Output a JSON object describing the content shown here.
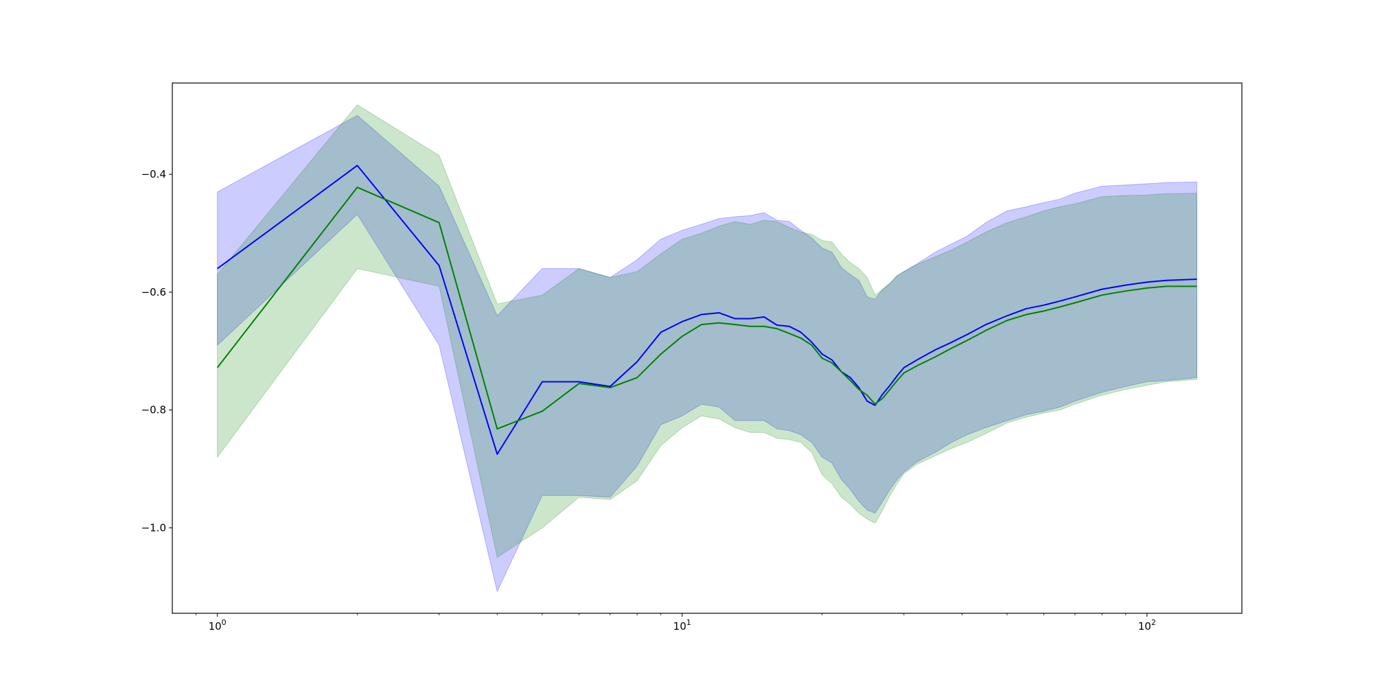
{
  "chart_data": {
    "type": "line",
    "title": "",
    "xlabel": "",
    "ylabel": "",
    "xscale": "log",
    "xlim": [
      0.8,
      160
    ],
    "ylim": [
      -1.145,
      -0.245
    ],
    "grid": false,
    "legend": "none",
    "x_ticks": [
      {
        "value": 1,
        "base": "10",
        "exp": "0"
      },
      {
        "value": 10,
        "base": "10",
        "exp": "1"
      },
      {
        "value": 100,
        "base": "10",
        "exp": "2"
      }
    ],
    "y_ticks": [
      {
        "value": -0.4,
        "label": "−0.4"
      },
      {
        "value": -0.6,
        "label": "−0.6"
      },
      {
        "value": -0.8,
        "label": "−0.8"
      },
      {
        "value": -1.0,
        "label": "−1.0"
      }
    ],
    "series": [
      {
        "color": "#0000ff",
        "band_color": "#0000ff",
        "band_opacity": 0.2,
        "x": [
          1,
          2,
          3,
          4,
          5,
          6,
          7,
          8,
          9,
          10,
          11,
          12,
          13,
          14,
          15,
          16,
          17,
          18,
          19,
          20,
          21,
          22,
          23,
          24,
          25,
          26,
          27,
          28,
          29,
          30,
          32,
          35,
          38,
          41,
          45,
          50,
          55,
          60,
          65,
          70,
          80,
          90,
          100,
          110,
          128
        ],
        "mean": [
          -0.56,
          -0.385,
          -0.555,
          -0.875,
          -0.752,
          -0.752,
          -0.76,
          -0.718,
          -0.668,
          -0.65,
          -0.638,
          -0.635,
          -0.645,
          -0.645,
          -0.642,
          -0.656,
          -0.658,
          -0.668,
          -0.685,
          -0.705,
          -0.715,
          -0.735,
          -0.745,
          -0.762,
          -0.785,
          -0.792,
          -0.773,
          -0.758,
          -0.742,
          -0.728,
          -0.715,
          -0.698,
          -0.685,
          -0.672,
          -0.655,
          -0.64,
          -0.628,
          -0.622,
          -0.615,
          -0.608,
          -0.595,
          -0.588,
          -0.583,
          -0.58,
          -0.578
        ],
        "upper": [
          -0.43,
          -0.3,
          -0.42,
          -0.64,
          -0.56,
          -0.56,
          -0.575,
          -0.545,
          -0.51,
          -0.495,
          -0.485,
          -0.475,
          -0.472,
          -0.47,
          -0.465,
          -0.478,
          -0.48,
          -0.495,
          -0.508,
          -0.525,
          -0.532,
          -0.558,
          -0.57,
          -0.58,
          -0.608,
          -0.612,
          -0.595,
          -0.585,
          -0.572,
          -0.565,
          -0.552,
          -0.532,
          -0.518,
          -0.505,
          -0.482,
          -0.462,
          -0.455,
          -0.448,
          -0.442,
          -0.432,
          -0.42,
          -0.418,
          -0.416,
          -0.414,
          -0.413
        ],
        "lower": [
          -0.69,
          -0.468,
          -0.69,
          -1.108,
          -0.945,
          -0.945,
          -0.948,
          -0.895,
          -0.825,
          -0.81,
          -0.79,
          -0.795,
          -0.818,
          -0.818,
          -0.818,
          -0.832,
          -0.835,
          -0.842,
          -0.855,
          -0.88,
          -0.89,
          -0.918,
          -0.935,
          -0.955,
          -0.97,
          -0.975,
          -0.955,
          -0.935,
          -0.918,
          -0.905,
          -0.888,
          -0.872,
          -0.855,
          -0.842,
          -0.83,
          -0.818,
          -0.808,
          -0.802,
          -0.795,
          -0.785,
          -0.77,
          -0.76,
          -0.752,
          -0.75,
          -0.745
        ]
      },
      {
        "color": "#008000",
        "band_color": "#008000",
        "band_opacity": 0.2,
        "x": [
          1,
          2,
          3,
          4,
          5,
          6,
          7,
          8,
          9,
          10,
          11,
          12,
          13,
          14,
          15,
          16,
          17,
          18,
          19,
          20,
          21,
          22,
          23,
          24,
          25,
          26,
          27,
          28,
          29,
          30,
          32,
          35,
          38,
          41,
          45,
          50,
          55,
          60,
          65,
          70,
          80,
          90,
          100,
          110,
          128
        ],
        "mean": [
          -0.728,
          -0.422,
          -0.482,
          -0.832,
          -0.802,
          -0.755,
          -0.762,
          -0.745,
          -0.705,
          -0.675,
          -0.655,
          -0.652,
          -0.655,
          -0.658,
          -0.658,
          -0.662,
          -0.67,
          -0.678,
          -0.69,
          -0.712,
          -0.72,
          -0.735,
          -0.75,
          -0.765,
          -0.775,
          -0.79,
          -0.78,
          -0.765,
          -0.75,
          -0.737,
          -0.725,
          -0.71,
          -0.695,
          -0.682,
          -0.665,
          -0.648,
          -0.638,
          -0.632,
          -0.625,
          -0.618,
          -0.605,
          -0.598,
          -0.593,
          -0.59,
          -0.59
        ],
        "upper": [
          -0.57,
          -0.282,
          -0.368,
          -0.62,
          -0.605,
          -0.56,
          -0.575,
          -0.565,
          -0.535,
          -0.51,
          -0.5,
          -0.488,
          -0.48,
          -0.485,
          -0.478,
          -0.48,
          -0.49,
          -0.498,
          -0.502,
          -0.512,
          -0.515,
          -0.535,
          -0.55,
          -0.56,
          -0.575,
          -0.605,
          -0.595,
          -0.585,
          -0.572,
          -0.565,
          -0.553,
          -0.54,
          -0.528,
          -0.515,
          -0.498,
          -0.482,
          -0.472,
          -0.462,
          -0.455,
          -0.45,
          -0.438,
          -0.436,
          -0.435,
          -0.433,
          -0.432
        ],
        "lower": [
          -0.88,
          -0.56,
          -0.59,
          -1.05,
          -1.0,
          -0.948,
          -0.952,
          -0.92,
          -0.86,
          -0.83,
          -0.81,
          -0.815,
          -0.83,
          -0.838,
          -0.838,
          -0.848,
          -0.85,
          -0.855,
          -0.872,
          -0.91,
          -0.925,
          -0.948,
          -0.96,
          -0.975,
          -0.985,
          -0.992,
          -0.97,
          -0.945,
          -0.925,
          -0.908,
          -0.892,
          -0.878,
          -0.865,
          -0.855,
          -0.84,
          -0.822,
          -0.812,
          -0.805,
          -0.8,
          -0.79,
          -0.775,
          -0.765,
          -0.758,
          -0.752,
          -0.748
        ]
      }
    ]
  }
}
